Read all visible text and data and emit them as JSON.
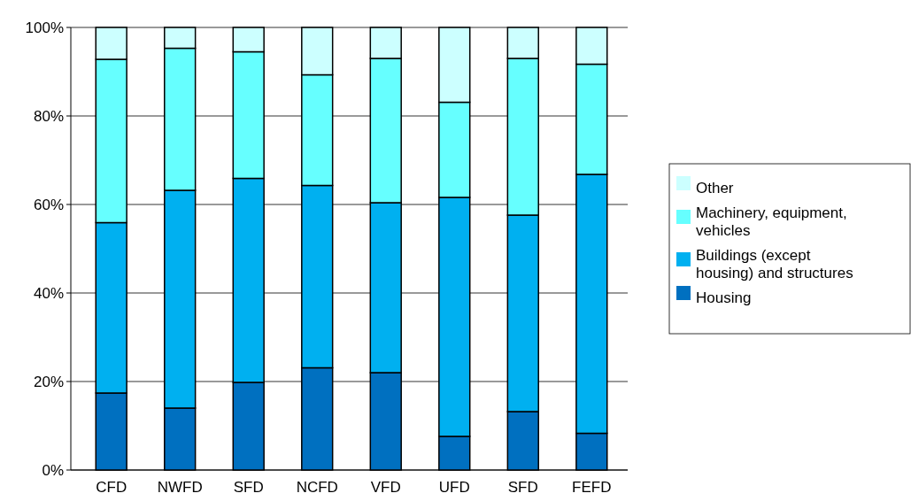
{
  "chart_data": {
    "type": "bar",
    "stacked": true,
    "categories": [
      "CFD",
      "NWFD",
      "SFD",
      "NCFD",
      "VFD",
      "UFD",
      "SFD",
      "FEFD"
    ],
    "series": [
      {
        "name": "Housing",
        "color": "#0070c0",
        "values": [
          17.4,
          14.0,
          19.8,
          23.1,
          22.0,
          7.6,
          13.2,
          8.3
        ]
      },
      {
        "name": "Buildings (except housing) and structures",
        "color": "#00b0f0",
        "values": [
          38.5,
          49.2,
          46.1,
          41.2,
          38.4,
          54.0,
          44.4,
          58.5
        ]
      },
      {
        "name": "Machinery, equipment, vehicles",
        "color": "#66ffff",
        "values": [
          36.9,
          32.1,
          28.6,
          25.0,
          32.6,
          21.5,
          35.4,
          24.9
        ]
      },
      {
        "name": "Other",
        "color": "#ccffff",
        "values": [
          7.2,
          4.7,
          5.5,
          10.7,
          7.0,
          16.9,
          7.0,
          8.3
        ]
      }
    ],
    "ylim": [
      0,
      100
    ],
    "yticks": [
      {
        "value": 0,
        "label": "0%"
      },
      {
        "value": 20,
        "label": "20%"
      },
      {
        "value": 40,
        "label": "40%"
      },
      {
        "value": 60,
        "label": "60%"
      },
      {
        "value": 80,
        "label": "80%"
      },
      {
        "value": 100,
        "label": "100%"
      }
    ],
    "grid": "y",
    "legend": "right"
  }
}
